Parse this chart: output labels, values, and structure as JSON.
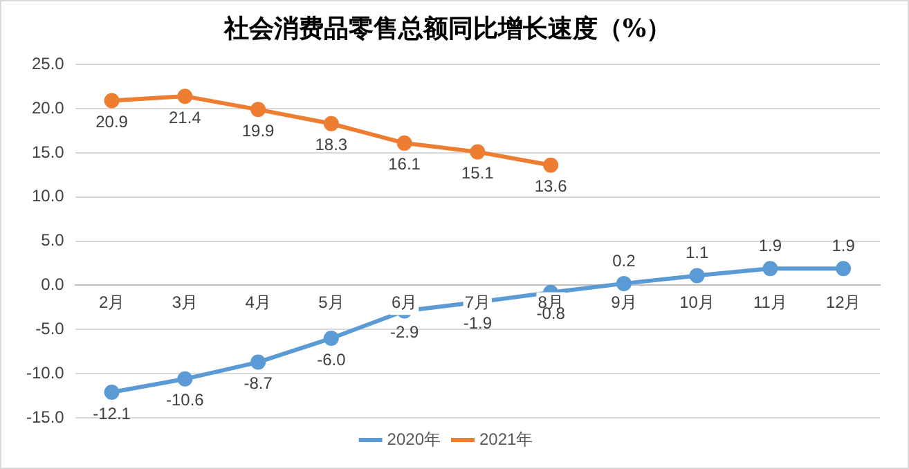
{
  "chart_data": {
    "type": "line",
    "title": "社会消费品零售总额同比增长速度（%）",
    "categories": [
      "2月",
      "3月",
      "4月",
      "5月",
      "6月",
      "7月",
      "8月",
      "9月",
      "10月",
      "11月",
      "12月"
    ],
    "series": [
      {
        "name": "2020年",
        "color": "#5b9bd5",
        "values": [
          -12.1,
          -10.6,
          -8.7,
          -6.0,
          -2.9,
          -1.9,
          -0.8,
          0.2,
          1.1,
          1.9,
          1.9
        ],
        "value_labels": [
          "-12.1",
          "-10.6",
          "-8.7",
          "-6.0",
          "-2.9",
          "-1.9",
          "-0.8",
          "0.2",
          "1.1",
          "1.9",
          "1.9"
        ]
      },
      {
        "name": "2021年",
        "color": "#ed7d31",
        "values": [
          20.9,
          21.4,
          19.9,
          18.3,
          16.1,
          15.1,
          13.6,
          null,
          null,
          null,
          null
        ],
        "value_labels": [
          "20.9",
          "21.4",
          "19.9",
          "18.3",
          "16.1",
          "15.1",
          "13.6",
          null,
          null,
          null,
          null
        ]
      }
    ],
    "ylim": [
      -15,
      25
    ],
    "yticks": [
      {
        "value": -15,
        "label": "-15.0"
      },
      {
        "value": -10,
        "label": "-10.0"
      },
      {
        "value": -5,
        "label": "-5.0"
      },
      {
        "value": 0,
        "label": "0.0"
      },
      {
        "value": 5,
        "label": "5.0"
      },
      {
        "value": 10,
        "label": "10.0"
      },
      {
        "value": 15,
        "label": "15.0"
      },
      {
        "value": 20,
        "label": "20.0"
      },
      {
        "value": 25,
        "label": "25.0"
      }
    ],
    "grid": "y",
    "legend": "bottom",
    "marker": "circle",
    "line_style": "solid"
  }
}
